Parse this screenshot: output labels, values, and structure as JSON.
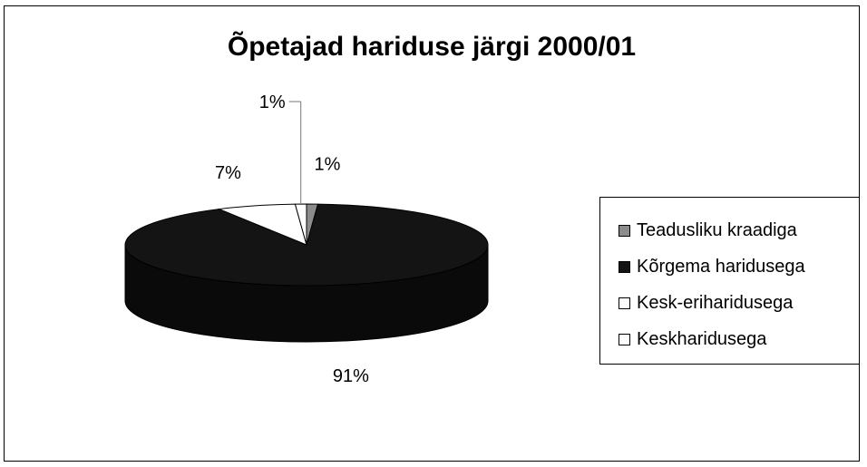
{
  "chart_data": {
    "type": "pie",
    "title": "Õpetajad hariduse järgi 2000/01",
    "categories": [
      "Teadusliku kraadiga",
      "Kõrgema haridusega",
      "Kesk-eriharidusega",
      "Keskharidusega"
    ],
    "values": [
      1,
      91,
      7,
      1
    ],
    "data_labels": [
      "1%",
      "91%",
      "7%",
      "1%"
    ],
    "colors": [
      "#8c8c8c",
      "#141414",
      "#ffffff",
      "#ffffff"
    ],
    "legend_position": "right",
    "style": "3d"
  }
}
